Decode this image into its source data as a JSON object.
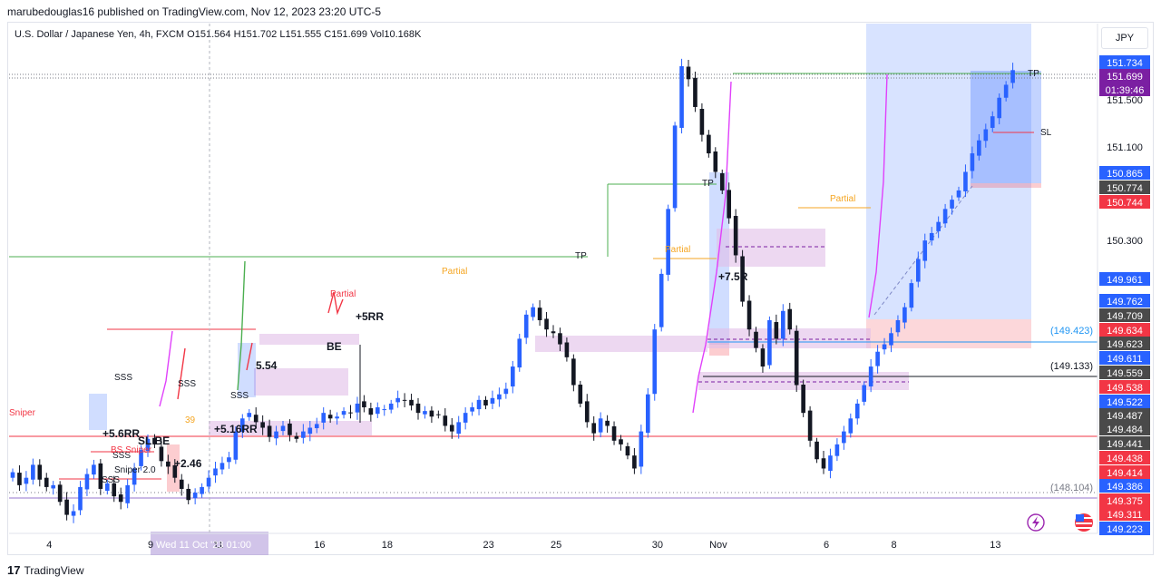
{
  "header": {
    "published": "marubedouglas16 published on TradingView.com, Nov 12, 2023 23:20 UTC-5"
  },
  "symbol_line": {
    "name": "U.S. Dollar / Japanese Yen, 4h, FXCM",
    "open": "O151.564",
    "high": "H151.702",
    "low": "L151.555",
    "close": "C151.699",
    "volume": "Vol10.168K"
  },
  "currency_button": "JPY",
  "footer": {
    "brand": "TradingView",
    "mark": "17"
  },
  "colors": {
    "bull": "#2962ff",
    "bear": "#131722",
    "accent_blue": "#2962ff",
    "red": "#f23645",
    "green_line": "#4caf50",
    "purple_zone": "#e1bee7",
    "orange_text": "#f5a623",
    "magenta": "#e040fb"
  },
  "chart_data": {
    "type": "candlestick",
    "symbol": "U.S. Dollar / Japanese Yen",
    "timeframe": "4h",
    "ylim": [
      149.2,
      151.95
    ],
    "x_ticks": [
      {
        "label": "4",
        "i": 3
      },
      {
        "label": "9",
        "i": 18
      },
      {
        "label": "11",
        "i": 28
      },
      {
        "label": "16",
        "i": 43
      },
      {
        "label": "18",
        "i": 53
      },
      {
        "label": "23",
        "i": 68
      },
      {
        "label": "25",
        "i": 78
      },
      {
        "label": "30",
        "i": 93
      },
      {
        "label": "Nov",
        "i": 102
      },
      {
        "label": "6",
        "i": 118
      },
      {
        "label": "8",
        "i": 128
      },
      {
        "label": "13",
        "i": 143
      }
    ],
    "crosshair_label": "Wed 11 Oct '23   01:00",
    "y_ticks": [
      "151.500",
      "151.100",
      "150.300",
      "149.709"
    ],
    "closes": [
      149.53,
      149.46,
      149.5,
      149.57,
      149.49,
      149.45,
      149.46,
      149.37,
      149.3,
      149.32,
      149.45,
      149.52,
      149.57,
      149.44,
      149.47,
      149.4,
      149.37,
      149.46,
      149.55,
      149.65,
      149.71,
      149.68,
      149.59,
      149.56,
      149.5,
      149.44,
      149.38,
      149.42,
      149.45,
      149.5,
      149.55,
      149.58,
      149.61,
      149.75,
      149.82,
      149.85,
      149.8,
      149.77,
      149.72,
      149.75,
      149.78,
      149.73,
      149.71,
      149.75,
      149.77,
      149.79,
      149.85,
      149.82,
      149.83,
      149.86,
      149.85,
      149.9,
      149.88,
      149.84,
      149.88,
      149.87,
      149.9,
      149.93,
      149.92,
      149.89,
      149.85,
      149.86,
      149.83,
      149.84,
      149.78,
      149.75,
      149.8,
      149.85,
      149.88,
      149.92,
      149.89,
      149.93,
      149.95,
      149.98,
      150.1,
      150.25,
      150.38,
      150.42,
      150.35,
      150.3,
      150.28,
      150.22,
      150.15,
      150.0,
      149.9,
      149.8,
      149.74,
      149.82,
      149.78,
      149.7,
      149.68,
      149.62,
      149.55,
      149.75,
      149.95,
      150.3,
      150.6,
      150.95,
      151.4,
      151.72,
      151.65,
      151.5,
      151.35,
      151.25,
      151.15,
      151.05,
      150.9,
      150.7,
      150.45,
      150.3,
      150.2,
      150.1,
      150.35,
      150.25,
      150.4,
      150.3,
      150.0,
      149.85,
      149.7,
      149.6,
      149.55,
      149.62,
      149.68,
      149.75,
      149.82,
      149.9,
      150.0,
      150.1,
      150.18,
      150.22,
      150.28,
      150.35,
      150.42,
      150.55,
      150.68,
      150.78,
      150.82,
      150.88,
      150.95,
      151.0,
      151.05,
      151.15,
      151.25,
      151.32,
      151.38,
      151.45,
      151.55,
      151.62,
      151.699
    ],
    "horizontal_levels": [
      {
        "label": "(149.423)",
        "price": 149.423,
        "color": "#2196f3"
      },
      {
        "label": "(149.133)",
        "price": 149.133,
        "color": "#131722"
      },
      {
        "label": "(148.104)",
        "price": 148.104,
        "color": "#787b86"
      }
    ],
    "price_labels": [
      {
        "text": "151.734",
        "bg": "#2962ff"
      },
      {
        "text": "151.699",
        "bg": "#7b1fa2"
      },
      {
        "text": "01:39:46",
        "bg": "#7b1fa2"
      },
      {
        "text": "151.500",
        "bg": "none"
      },
      {
        "text": "151.100",
        "bg": "none"
      },
      {
        "text": "150.865",
        "bg": "#2962ff"
      },
      {
        "text": "150.774",
        "bg": "#4a4a4a"
      },
      {
        "text": "150.744",
        "bg": "#f23645"
      },
      {
        "text": "150.300",
        "bg": "none"
      },
      {
        "text": "149.961",
        "bg": "#2962ff"
      },
      {
        "text": "149.762",
        "bg": "#2962ff"
      },
      {
        "text": "149.709",
        "bg": "#4a4a4a"
      },
      {
        "text": "149.634",
        "bg": "#f23645"
      },
      {
        "text": "149.623",
        "bg": "#4a4a4a"
      },
      {
        "text": "149.611",
        "bg": "#2962ff"
      },
      {
        "text": "149.559",
        "bg": "#4a4a4a"
      },
      {
        "text": "149.538",
        "bg": "#f23645"
      },
      {
        "text": "149.522",
        "bg": "#2962ff"
      },
      {
        "text": "149.487",
        "bg": "#4a4a4a"
      },
      {
        "text": "149.484",
        "bg": "#4a4a4a"
      },
      {
        "text": "149.441",
        "bg": "#4a4a4a"
      },
      {
        "text": "149.438",
        "bg": "#f23645"
      },
      {
        "text": "149.414",
        "bg": "#f23645"
      },
      {
        "text": "149.386",
        "bg": "#2962ff"
      },
      {
        "text": "149.375",
        "bg": "#f23645"
      },
      {
        "text": "149.311",
        "bg": "#f23645"
      },
      {
        "text": "149.223",
        "bg": "#2962ff"
      }
    ],
    "annotations": [
      {
        "text": "TP",
        "color": "#131722"
      },
      {
        "text": "TP",
        "color": "#131722"
      },
      {
        "text": "TP",
        "color": "#131722"
      },
      {
        "text": "SL",
        "color": "#131722"
      },
      {
        "text": "Partial",
        "color": "#f5a623"
      },
      {
        "text": "Partial",
        "color": "#f5a623"
      },
      {
        "text": "Partial",
        "color": "#f5a623"
      },
      {
        "text": "Partial",
        "color": "#f23645"
      },
      {
        "text": "+7.5R",
        "color": "#131722"
      },
      {
        "text": "+5.6RR",
        "color": "#131722"
      },
      {
        "text": "+5.16RR",
        "color": "#131722"
      },
      {
        "text": "+2.46",
        "color": "#131722"
      },
      {
        "text": "5.54",
        "color": "#131722"
      },
      {
        "text": "+5RR",
        "color": "#131722"
      },
      {
        "text": "BE",
        "color": "#131722"
      },
      {
        "text": "SSS",
        "color": "#131722"
      },
      {
        "text": "SSS",
        "color": "#131722"
      },
      {
        "text": "SSS",
        "color": "#131722"
      },
      {
        "text": "SSS",
        "color": "#131722"
      },
      {
        "text": "SSS",
        "color": "#131722"
      },
      {
        "text": "Sniper 2.0",
        "color": "#131722"
      },
      {
        "text": "Sniper",
        "color": "#f23645"
      },
      {
        "text": "BS Sniper",
        "color": "#f23645"
      },
      {
        "text": "SL BE",
        "color": "#131722"
      },
      {
        "text": "39",
        "color": "#f5a623"
      }
    ]
  }
}
